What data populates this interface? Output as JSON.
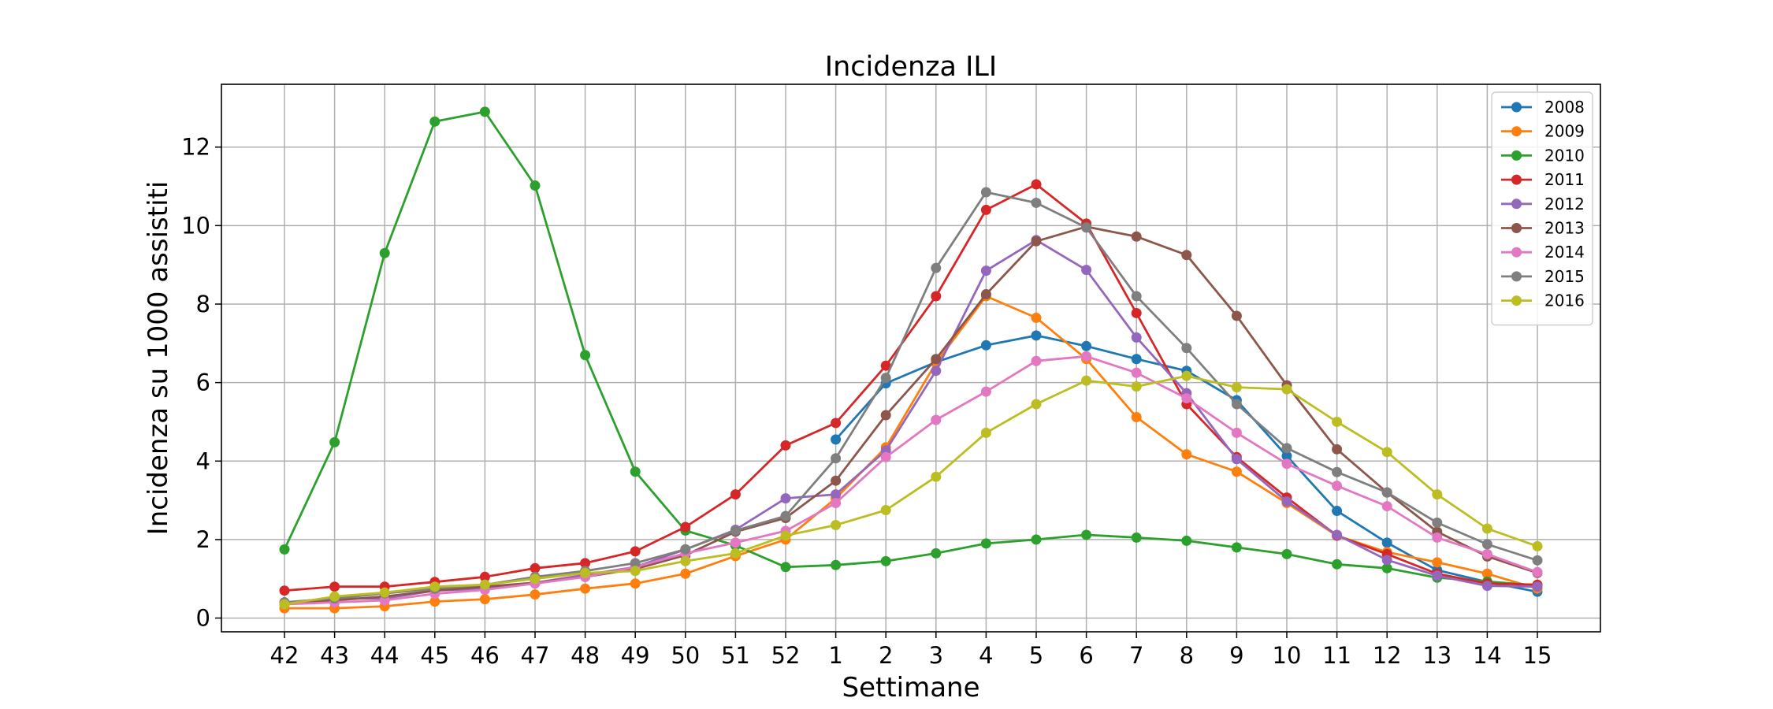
{
  "chart_data": {
    "type": "line",
    "title": "Incidenza ILI",
    "xlabel": "Settimane",
    "ylabel": "Incidenza su 1000 assistiti",
    "categories": [
      "42",
      "43",
      "44",
      "45",
      "46",
      "47",
      "48",
      "49",
      "50",
      "51",
      "52",
      "1",
      "2",
      "3",
      "4",
      "5",
      "6",
      "7",
      "8",
      "9",
      "10",
      "11",
      "12",
      "13",
      "14",
      "15"
    ],
    "yticks": [
      0,
      2,
      4,
      6,
      8,
      10,
      12
    ],
    "ylim": [
      -0.35,
      13.6
    ],
    "grid": true,
    "legend_position": "top-right",
    "series": [
      {
        "name": "2008",
        "color": "#1f77b4",
        "values": [
          null,
          null,
          null,
          null,
          null,
          null,
          null,
          null,
          null,
          null,
          null,
          4.55,
          5.98,
          6.52,
          6.95,
          7.2,
          6.93,
          6.6,
          6.3,
          5.55,
          4.13,
          2.73,
          1.92,
          1.22,
          0.92,
          0.67
        ]
      },
      {
        "name": "2009",
        "color": "#ff7f0e",
        "values": [
          0.25,
          0.25,
          0.3,
          0.42,
          0.48,
          0.6,
          0.75,
          0.88,
          1.13,
          1.58,
          2.0,
          3.05,
          4.35,
          6.5,
          8.2,
          7.65,
          6.6,
          5.12,
          4.17,
          3.73,
          2.93,
          2.1,
          1.68,
          1.42,
          1.13,
          0.75
        ]
      },
      {
        "name": "2010",
        "color": "#2ca02c",
        "values": [
          1.75,
          4.48,
          9.3,
          12.65,
          12.9,
          11.02,
          6.7,
          3.73,
          2.23,
          1.85,
          1.3,
          1.35,
          1.45,
          1.65,
          1.9,
          2.0,
          2.12,
          2.05,
          1.97,
          1.8,
          1.63,
          1.37,
          1.27,
          1.03,
          0.93,
          0.83
        ]
      },
      {
        "name": "2011",
        "color": "#d62728",
        "values": [
          0.7,
          0.8,
          0.8,
          0.92,
          1.05,
          1.27,
          1.4,
          1.7,
          2.32,
          3.15,
          4.4,
          4.97,
          6.43,
          8.2,
          10.4,
          11.05,
          10.05,
          7.77,
          5.45,
          4.1,
          3.07,
          2.1,
          1.63,
          1.13,
          0.88,
          0.85
        ]
      },
      {
        "name": "2012",
        "color": "#9467bd",
        "values": [
          0.4,
          0.5,
          0.5,
          0.7,
          0.75,
          0.9,
          1.1,
          1.3,
          1.75,
          2.25,
          3.05,
          3.15,
          4.27,
          6.3,
          8.85,
          9.63,
          8.87,
          7.15,
          5.73,
          4.05,
          2.97,
          2.12,
          1.48,
          1.08,
          0.82,
          0.8
        ]
      },
      {
        "name": "2013",
        "color": "#8c564b",
        "values": [
          0.35,
          0.45,
          0.55,
          0.7,
          0.8,
          0.9,
          1.05,
          1.25,
          1.6,
          2.2,
          2.55,
          3.5,
          5.17,
          6.6,
          8.25,
          9.6,
          9.97,
          9.72,
          9.25,
          7.7,
          5.93,
          4.3,
          3.2,
          2.2,
          1.57,
          1.15
        ]
      },
      {
        "name": "2014",
        "color": "#e377c2",
        "values": [
          0.35,
          0.4,
          0.45,
          0.62,
          0.72,
          0.88,
          1.05,
          1.3,
          1.65,
          1.92,
          2.22,
          2.93,
          4.1,
          5.05,
          5.77,
          6.55,
          6.67,
          6.25,
          5.6,
          4.72,
          3.93,
          3.37,
          2.85,
          2.05,
          1.63,
          1.17
        ]
      },
      {
        "name": "2015",
        "color": "#7f7f7f",
        "values": [
          0.4,
          0.5,
          0.63,
          0.75,
          0.85,
          1.05,
          1.2,
          1.4,
          1.75,
          2.23,
          2.6,
          4.07,
          6.12,
          8.92,
          10.85,
          10.58,
          9.95,
          8.2,
          6.88,
          5.45,
          4.33,
          3.72,
          3.2,
          2.43,
          1.88,
          1.47
        ]
      },
      {
        "name": "2016",
        "color": "#bcbd22",
        "values": [
          0.35,
          0.55,
          0.65,
          0.8,
          0.85,
          1.0,
          1.15,
          1.2,
          1.45,
          1.65,
          2.1,
          2.37,
          2.75,
          3.6,
          4.72,
          5.45,
          6.05,
          5.9,
          6.17,
          5.88,
          5.83,
          5.0,
          4.23,
          3.15,
          2.28,
          1.83
        ]
      }
    ]
  }
}
